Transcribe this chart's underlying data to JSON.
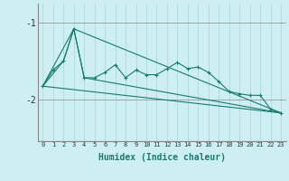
{
  "xlabel": "Humidex (Indice chaleur)",
  "background_color": "#cdeef2",
  "line_color": "#1a7a70",
  "grid_color_v": "#b0d8dc",
  "grid_color_h": "#999999",
  "xlim": [
    -0.5,
    23.5
  ],
  "ylim": [
    -2.55,
    -0.75
  ],
  "yticks": [
    -2,
    -1
  ],
  "xticks": [
    0,
    1,
    2,
    3,
    4,
    5,
    6,
    7,
    8,
    9,
    10,
    11,
    12,
    13,
    14,
    15,
    16,
    17,
    18,
    19,
    20,
    21,
    22,
    23
  ],
  "series_main": [
    [
      0,
      -1.83
    ],
    [
      1,
      -1.62
    ],
    [
      2,
      -1.5
    ],
    [
      3,
      -1.08
    ],
    [
      4,
      -1.72
    ],
    [
      5,
      -1.72
    ],
    [
      6,
      -1.65
    ],
    [
      7,
      -1.55
    ],
    [
      8,
      -1.72
    ],
    [
      9,
      -1.62
    ],
    [
      10,
      -1.68
    ],
    [
      11,
      -1.68
    ],
    [
      12,
      -1.6
    ],
    [
      13,
      -1.52
    ],
    [
      14,
      -1.6
    ],
    [
      15,
      -1.58
    ],
    [
      16,
      -1.65
    ],
    [
      17,
      -1.77
    ],
    [
      18,
      -1.9
    ],
    [
      19,
      -1.93
    ],
    [
      20,
      -1.95
    ],
    [
      21,
      -1.95
    ],
    [
      22,
      -2.13
    ],
    [
      23,
      -2.18
    ]
  ],
  "series_triangle": [
    [
      0,
      -1.83
    ],
    [
      3,
      -1.08
    ],
    [
      23,
      -2.18
    ]
  ],
  "series_envelope": [
    [
      0,
      -1.83
    ],
    [
      2,
      -1.5
    ],
    [
      3,
      -1.08
    ],
    [
      4,
      -1.72
    ],
    [
      23,
      -2.18
    ]
  ],
  "series_straight": [
    [
      0,
      -1.83
    ],
    [
      23,
      -2.18
    ]
  ]
}
